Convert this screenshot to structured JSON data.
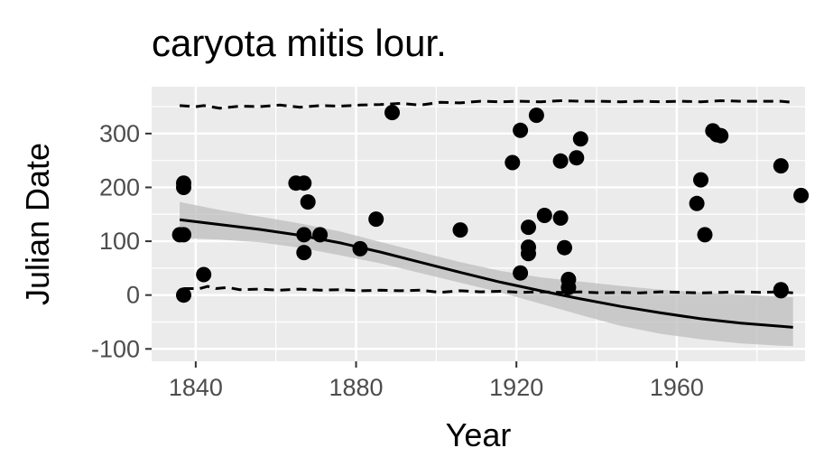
{
  "chart_data": {
    "type": "scatter",
    "title": "caryota mitis lour.",
    "xlabel": "Year",
    "ylabel": "Julian Date",
    "xlim": [
      1829,
      1992
    ],
    "ylim": [
      -123,
      387
    ],
    "x_ticks": [
      1840,
      1880,
      1920,
      1960
    ],
    "x_tick_labels": [
      "1840",
      "1880",
      "1920",
      "1960"
    ],
    "y_ticks": [
      -100,
      0,
      100,
      200,
      300
    ],
    "y_tick_labels": [
      "-100",
      "0",
      "100",
      "200",
      "300"
    ],
    "grid": true,
    "legend": "none",
    "colors": {
      "panel_background": "#ebebeb",
      "grid": "#ffffff",
      "points": "#000000",
      "ribbon": "#bdbdbd",
      "tick_label": "#4d4d4d"
    },
    "points": [
      {
        "x": 1836,
        "y": 112
      },
      {
        "x": 1837,
        "y": 112
      },
      {
        "x": 1837,
        "y": 208
      },
      {
        "x": 1837,
        "y": 200
      },
      {
        "x": 1837,
        "y": 0
      },
      {
        "x": 1842,
        "y": 38
      },
      {
        "x": 1865,
        "y": 208
      },
      {
        "x": 1867,
        "y": 208
      },
      {
        "x": 1867,
        "y": 112
      },
      {
        "x": 1867,
        "y": 79
      },
      {
        "x": 1868,
        "y": 173
      },
      {
        "x": 1871,
        "y": 112
      },
      {
        "x": 1881,
        "y": 86
      },
      {
        "x": 1885,
        "y": 141
      },
      {
        "x": 1889,
        "y": 339
      },
      {
        "x": 1906,
        "y": 121
      },
      {
        "x": 1919,
        "y": 246
      },
      {
        "x": 1921,
        "y": 306
      },
      {
        "x": 1921,
        "y": 41
      },
      {
        "x": 1923,
        "y": 126
      },
      {
        "x": 1923,
        "y": 89
      },
      {
        "x": 1923,
        "y": 77
      },
      {
        "x": 1925,
        "y": 334
      },
      {
        "x": 1927,
        "y": 148
      },
      {
        "x": 1931,
        "y": 143
      },
      {
        "x": 1931,
        "y": 249
      },
      {
        "x": 1932,
        "y": 88
      },
      {
        "x": 1933,
        "y": 29
      },
      {
        "x": 1933,
        "y": 14
      },
      {
        "x": 1935,
        "y": 255
      },
      {
        "x": 1936,
        "y": 290
      },
      {
        "x": 1965,
        "y": 170
      },
      {
        "x": 1966,
        "y": 214
      },
      {
        "x": 1967,
        "y": 112
      },
      {
        "x": 1969,
        "y": 305
      },
      {
        "x": 1970,
        "y": 298
      },
      {
        "x": 1971,
        "y": 296
      },
      {
        "x": 1986,
        "y": 240
      },
      {
        "x": 1986,
        "y": 8
      },
      {
        "x": 1986,
        "y": 10
      },
      {
        "x": 1991,
        "y": 185
      }
    ],
    "fit_line": {
      "x": [
        1836,
        1846,
        1856,
        1866,
        1876,
        1886,
        1896,
        1906,
        1916,
        1926,
        1936,
        1946,
        1956,
        1966,
        1976,
        1986,
        1989
      ],
      "y": [
        140,
        131,
        122,
        111,
        97,
        80,
        61,
        42,
        24,
        8,
        -7,
        -21,
        -33,
        -44,
        -52,
        -58,
        -60
      ]
    },
    "confidence_band": {
      "x": [
        1836,
        1846,
        1856,
        1866,
        1876,
        1886,
        1896,
        1906,
        1916,
        1926,
        1936,
        1946,
        1956,
        1966,
        1976,
        1986,
        1989
      ],
      "upper": [
        173,
        158,
        146,
        133,
        118,
        99,
        80,
        61,
        45,
        33,
        25,
        17,
        10,
        5,
        1,
        -3,
        -4
      ],
      "lower": [
        106,
        103,
        98,
        88,
        74,
        59,
        41,
        23,
        5,
        -16,
        -37,
        -57,
        -72,
        -82,
        -90,
        -94,
        -95
      ]
    },
    "upper_dashed_line": {
      "x": [
        1836,
        1840,
        1842,
        1846,
        1851,
        1856,
        1861,
        1866,
        1871,
        1876,
        1881,
        1886,
        1891,
        1896,
        1901,
        1906,
        1911,
        1916,
        1921,
        1926,
        1931,
        1936,
        1941,
        1946,
        1951,
        1956,
        1961,
        1966,
        1971,
        1976,
        1981,
        1986,
        1989
      ],
      "y": [
        352,
        350,
        352,
        347,
        351,
        350,
        353,
        349,
        352,
        351,
        353,
        354,
        356,
        353,
        358,
        357,
        360,
        359,
        360,
        359,
        361,
        360,
        360,
        359,
        360,
        359,
        360,
        359,
        361,
        360,
        360,
        360,
        358
      ]
    },
    "lower_dashed_line": {
      "x": [
        1837,
        1841,
        1843,
        1845,
        1848,
        1851,
        1856,
        1861,
        1866,
        1871,
        1876,
        1881,
        1886,
        1891,
        1896,
        1901,
        1906,
        1911,
        1916,
        1921,
        1926,
        1931,
        1936,
        1941,
        1946,
        1951,
        1956,
        1961,
        1966,
        1971,
        1976,
        1981,
        1986,
        1989
      ],
      "y": [
        12,
        12,
        16,
        12,
        14,
        10,
        11,
        9,
        11,
        9,
        10,
        8,
        9,
        8,
        9,
        5,
        8,
        6,
        7,
        5,
        6,
        5,
        6,
        4,
        5,
        4,
        6,
        5,
        4,
        5,
        6,
        5,
        6,
        4
      ]
    }
  }
}
